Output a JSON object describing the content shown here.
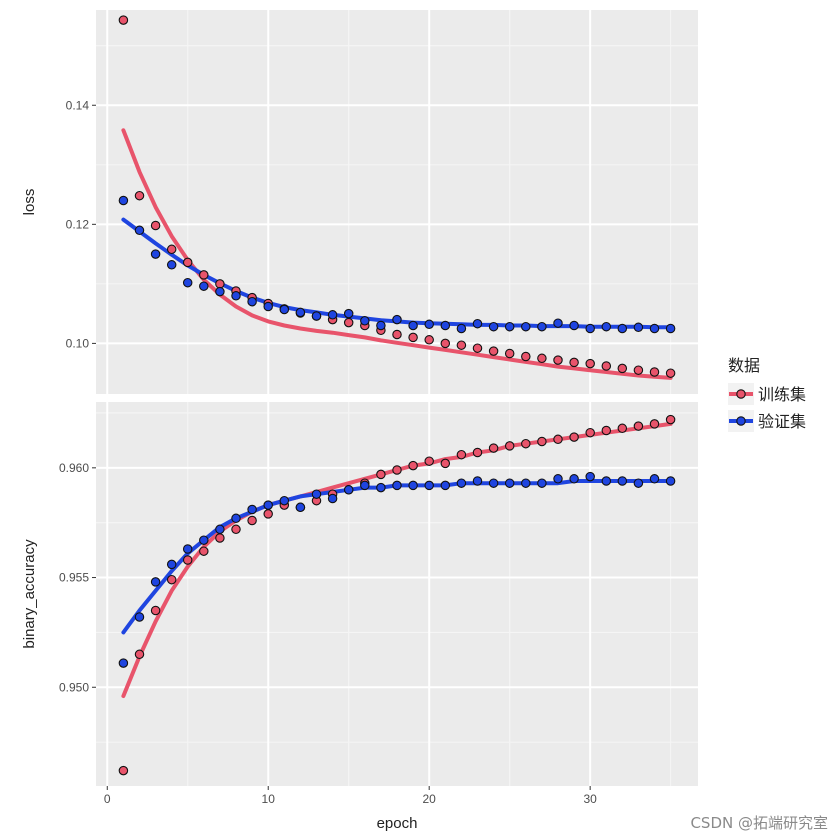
{
  "chart_data": {
    "type": "scatter",
    "xlabel": "epoch",
    "x_ticks": [
      0,
      10,
      20,
      30
    ],
    "xlim": [
      -0.7,
      36.7
    ],
    "legend": {
      "title": "数据",
      "position": "right",
      "entries": [
        {
          "label": "训练集",
          "color": "#e8546b"
        },
        {
          "label": "验证集",
          "color": "#1f45e0"
        }
      ]
    },
    "grid": true,
    "panels": [
      {
        "ylabel": "loss",
        "ylim": [
          0.0915,
          0.156
        ],
        "y_ticks": [
          0.1,
          0.12,
          0.14
        ],
        "y_tick_labels": [
          "0.10",
          "0.12",
          "0.14"
        ],
        "series": [
          {
            "name": "训练集",
            "color": "#e8546b",
            "x": [
              1,
              2,
              3,
              4,
              5,
              6,
              7,
              8,
              9,
              10,
              11,
              12,
              13,
              14,
              15,
              16,
              17,
              18,
              19,
              20,
              21,
              22,
              23,
              24,
              25,
              26,
              27,
              28,
              29,
              30,
              31,
              32,
              33,
              34,
              35
            ],
            "values": [
              0.1543,
              0.1248,
              0.1198,
              0.1158,
              0.1136,
              0.1115,
              0.11,
              0.1088,
              0.1077,
              0.1067,
              0.1058,
              0.1051,
              0.1046,
              0.104,
              0.1035,
              0.103,
              0.1022,
              0.1015,
              0.101,
              0.1006,
              0.1,
              0.0997,
              0.0992,
              0.0987,
              0.0983,
              0.0978,
              0.0975,
              0.0972,
              0.0968,
              0.0966,
              0.0962,
              0.0958,
              0.0955,
              0.0952,
              0.095
            ],
            "trend": [
              0.1358,
              0.1288,
              0.1229,
              0.118,
              0.114,
              0.1107,
              0.1082,
              0.1062,
              0.1047,
              0.1037,
              0.103,
              0.1025,
              0.1021,
              0.1018,
              0.1014,
              0.101,
              0.1005,
              0.1001,
              0.0997,
              0.0993,
              0.0989,
              0.0985,
              0.0981,
              0.0977,
              0.0973,
              0.0969,
              0.0965,
              0.0961,
              0.0958,
              0.0955,
              0.0952,
              0.0949,
              0.0946,
              0.0944,
              0.0942
            ]
          },
          {
            "name": "验证集",
            "color": "#1f45e0",
            "x": [
              1,
              2,
              3,
              4,
              5,
              6,
              7,
              8,
              9,
              10,
              11,
              12,
              13,
              14,
              15,
              16,
              17,
              18,
              19,
              20,
              21,
              22,
              23,
              24,
              25,
              26,
              27,
              28,
              29,
              30,
              31,
              32,
              33,
              34,
              35
            ],
            "values": [
              0.124,
              0.119,
              0.115,
              0.1132,
              0.1102,
              0.1096,
              0.1087,
              0.108,
              0.107,
              0.1062,
              0.1057,
              0.1052,
              0.1046,
              0.1048,
              0.105,
              0.1038,
              0.103,
              0.104,
              0.103,
              0.1032,
              0.103,
              0.1025,
              0.1033,
              0.1028,
              0.1028,
              0.1028,
              0.1028,
              0.1034,
              0.103,
              0.1025,
              0.1028,
              0.1025,
              0.1027,
              0.1025,
              0.1025
            ],
            "trend": [
              0.1208,
              0.1188,
              0.1168,
              0.1149,
              0.1131,
              0.1115,
              0.1101,
              0.1088,
              0.1077,
              0.1068,
              0.1061,
              0.1056,
              0.1052,
              0.1048,
              0.1045,
              0.1042,
              0.1039,
              0.1037,
              0.1035,
              0.1034,
              0.1033,
              0.1032,
              0.1031,
              0.1031,
              0.103,
              0.103,
              0.1029,
              0.1029,
              0.1029,
              0.1028,
              0.1028,
              0.1028,
              0.1028,
              0.1027,
              0.1027
            ]
          }
        ]
      },
      {
        "ylabel": "binary_accuracy",
        "ylim": [
          0.9455,
          0.963
        ],
        "y_ticks": [
          0.95,
          0.955,
          0.96
        ],
        "y_tick_labels": [
          "0.950",
          "0.955",
          "0.960"
        ],
        "series": [
          {
            "name": "训练集",
            "color": "#e8546b",
            "x": [
              1,
              2,
              3,
              4,
              5,
              6,
              7,
              8,
              9,
              10,
              11,
              12,
              13,
              14,
              15,
              16,
              17,
              18,
              19,
              20,
              21,
              22,
              23,
              24,
              25,
              26,
              27,
              28,
              29,
              30,
              31,
              32,
              33,
              34,
              35
            ],
            "values": [
              0.9462,
              0.9515,
              0.9535,
              0.9549,
              0.9558,
              0.9562,
              0.9568,
              0.9572,
              0.9576,
              0.9579,
              0.9583,
              0.9582,
              0.9585,
              0.9588,
              0.959,
              0.9593,
              0.9597,
              0.9599,
              0.9601,
              0.9603,
              0.9602,
              0.9606,
              0.9607,
              0.9609,
              0.961,
              0.9611,
              0.9612,
              0.9613,
              0.9614,
              0.9616,
              0.9617,
              0.9618,
              0.9619,
              0.962,
              0.9622
            ],
            "trend": [
              0.9496,
              0.9514,
              0.953,
              0.9544,
              0.9555,
              0.9564,
              0.9571,
              0.9576,
              0.958,
              0.9583,
              0.9585,
              0.9587,
              0.9589,
              0.9591,
              0.9593,
              0.9595,
              0.9597,
              0.9599,
              0.9601,
              0.9602,
              0.9604,
              0.9605,
              0.9607,
              0.9608,
              0.961,
              0.9611,
              0.9612,
              0.9613,
              0.9614,
              0.9615,
              0.9616,
              0.9617,
              0.9618,
              0.9619,
              0.962
            ]
          },
          {
            "name": "验证集",
            "color": "#1f45e0",
            "x": [
              1,
              2,
              3,
              4,
              5,
              6,
              7,
              8,
              9,
              10,
              11,
              12,
              13,
              14,
              15,
              16,
              17,
              18,
              19,
              20,
              21,
              22,
              23,
              24,
              25,
              26,
              27,
              28,
              29,
              30,
              31,
              32,
              33,
              34,
              35
            ],
            "values": [
              0.9511,
              0.9532,
              0.9548,
              0.9556,
              0.9563,
              0.9567,
              0.9572,
              0.9577,
              0.9581,
              0.9583,
              0.9585,
              0.9582,
              0.9588,
              0.9586,
              0.959,
              0.9592,
              0.9591,
              0.9592,
              0.9592,
              0.9592,
              0.9592,
              0.9593,
              0.9594,
              0.9593,
              0.9593,
              0.9593,
              0.9593,
              0.9595,
              0.9595,
              0.9596,
              0.9594,
              0.9594,
              0.9593,
              0.9595,
              0.9594
            ],
            "trend": [
              0.9525,
              0.9535,
              0.9544,
              0.9553,
              0.9561,
              0.9567,
              0.9573,
              0.9577,
              0.958,
              0.9583,
              0.9585,
              0.9587,
              0.9588,
              0.9589,
              0.959,
              0.9591,
              0.9591,
              0.9592,
              0.9592,
              0.9592,
              0.9592,
              0.9593,
              0.9593,
              0.9593,
              0.9593,
              0.9593,
              0.9593,
              0.9593,
              0.9594,
              0.9594,
              0.9594,
              0.9594,
              0.9594,
              0.9594,
              0.9594
            ]
          }
        ]
      }
    ]
  },
  "watermark": "CSDN @拓端研究室"
}
